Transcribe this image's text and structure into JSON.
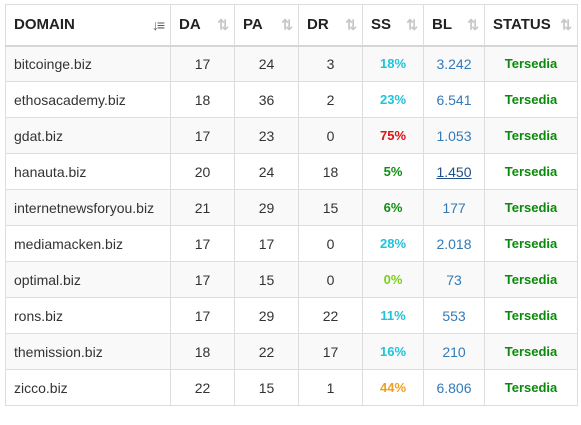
{
  "columns": [
    {
      "key": "domain",
      "label": "DOMAIN",
      "sort_icon": "sort-alpha-down-icon",
      "active": true
    },
    {
      "key": "da",
      "label": "DA",
      "sort_icon": "sort-icon",
      "active": false
    },
    {
      "key": "pa",
      "label": "PA",
      "sort_icon": "sort-icon",
      "active": false
    },
    {
      "key": "dr",
      "label": "DR",
      "sort_icon": "sort-icon",
      "active": false
    },
    {
      "key": "ss",
      "label": "SS",
      "sort_icon": "sort-icon",
      "active": false
    },
    {
      "key": "bl",
      "label": "BL",
      "sort_icon": "sort-icon",
      "active": false
    },
    {
      "key": "status",
      "label": "STATUS",
      "sort_icon": "sort-icon",
      "active": false
    }
  ],
  "ss_colors": {
    "cyan": "#20c4d8",
    "green": "#0f8f0f",
    "red": "#dd1111",
    "lime": "#7ccf1a",
    "orange": "#f0a020"
  },
  "rows": [
    {
      "domain": "bitcoinge.biz",
      "da": "17",
      "pa": "24",
      "dr": "3",
      "ss": "18%",
      "ss_color": "#20c4d8",
      "bl": "3.242",
      "bl_link": false,
      "status": "Tersedia"
    },
    {
      "domain": "ethosacademy.biz",
      "da": "18",
      "pa": "36",
      "dr": "2",
      "ss": "23%",
      "ss_color": "#20c4d8",
      "bl": "6.541",
      "bl_link": false,
      "status": "Tersedia"
    },
    {
      "domain": "gdat.biz",
      "da": "17",
      "pa": "23",
      "dr": "0",
      "ss": "75%",
      "ss_color": "#dd1111",
      "bl": "1.053",
      "bl_link": false,
      "status": "Tersedia"
    },
    {
      "domain": "hanauta.biz",
      "da": "20",
      "pa": "24",
      "dr": "18",
      "ss": "5%",
      "ss_color": "#0f8f0f",
      "bl": "1.450",
      "bl_link": true,
      "status": "Tersedia"
    },
    {
      "domain": "internetnewsforyou.biz",
      "da": "21",
      "pa": "29",
      "dr": "15",
      "ss": "6%",
      "ss_color": "#0f8f0f",
      "bl": "177",
      "bl_link": false,
      "status": "Tersedia"
    },
    {
      "domain": "mediamacken.biz",
      "da": "17",
      "pa": "17",
      "dr": "0",
      "ss": "28%",
      "ss_color": "#20c4d8",
      "bl": "2.018",
      "bl_link": false,
      "status": "Tersedia"
    },
    {
      "domain": "optimal.biz",
      "da": "17",
      "pa": "15",
      "dr": "0",
      "ss": "0%",
      "ss_color": "#7ccf1a",
      "bl": "73",
      "bl_link": false,
      "status": "Tersedia"
    },
    {
      "domain": "rons.biz",
      "da": "17",
      "pa": "29",
      "dr": "22",
      "ss": "11%",
      "ss_color": "#20c4d8",
      "bl": "553",
      "bl_link": false,
      "status": "Tersedia"
    },
    {
      "domain": "themission.biz",
      "da": "18",
      "pa": "22",
      "dr": "17",
      "ss": "16%",
      "ss_color": "#20c4d8",
      "bl": "210",
      "bl_link": false,
      "status": "Tersedia"
    },
    {
      "domain": "zicco.biz",
      "da": "22",
      "pa": "15",
      "dr": "1",
      "ss": "44%",
      "ss_color": "#f0a020",
      "bl": "6.806",
      "bl_link": false,
      "status": "Tersedia"
    }
  ]
}
